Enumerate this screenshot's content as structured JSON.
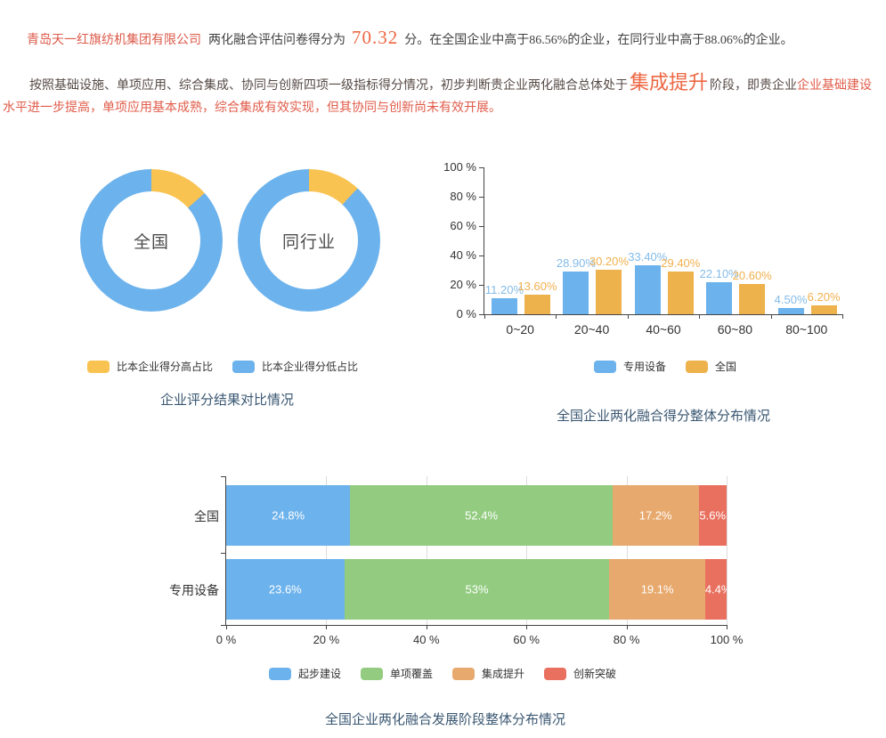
{
  "report": {
    "company": "青岛天一红旗纺机集团有限公司",
    "intro": "两化融合评估问卷得分为",
    "score": "70.32",
    "after_score": "分。在全国企业中高于86.56%的企业，在同行业中高于88.06%的企业。",
    "para2_lead": "按照基础设施、单项应用、综合集成、协同与创新四项一级指标得分情况，初步判断贵企业两化融合总体处于",
    "stage": "集成提升",
    "para2_mid": "阶段，即贵企业",
    "para2_tail": "企业基础建设水平进一步提高，单项应用基本成熟，综合集成有效实现，但其协同与创新尚未有效开展。"
  },
  "palette": {
    "accent_red": "#ed6742",
    "text_red": "#e05c4a",
    "title_navy": "#3a5772"
  },
  "chart_data": [
    {
      "type": "pie",
      "variant": "donut-pair",
      "title": "企业评分结果对比情况",
      "donuts": [
        {
          "label": "全国",
          "slices": [
            {
              "name": "比本企业得分高占比",
              "value": 13.44
            },
            {
              "name": "比本企业得分低占比",
              "value": 86.56
            }
          ]
        },
        {
          "label": "同行业",
          "slices": [
            {
              "name": "比本企业得分高占比",
              "value": 11.94
            },
            {
              "name": "比本企业得分低占比",
              "value": 88.06
            }
          ]
        }
      ],
      "legend": [
        {
          "label": "比本企业得分高占比",
          "color": "#f9c351"
        },
        {
          "label": "比本企业得分低占比",
          "color": "#6cb2ec"
        }
      ],
      "legend_position": "bottom"
    },
    {
      "type": "bar",
      "title": "全国企业两化融合得分整体分布情况",
      "categories": [
        "0~20",
        "20~40",
        "40~60",
        "60~80",
        "80~100"
      ],
      "series": [
        {
          "name": "专用设备",
          "color": "#6cb2ec",
          "label_color": "#84bbe8",
          "values": [
            11.2,
            28.9,
            33.4,
            22.1,
            4.5
          ],
          "labels": [
            "11.20%",
            "28.90%",
            "33.40%",
            "22.10%",
            "4.50%"
          ]
        },
        {
          "name": "全国",
          "color": "#edb24c",
          "label_color": "#f2b04e",
          "values": [
            13.6,
            30.2,
            29.4,
            20.6,
            6.2
          ],
          "labels": [
            "13.60%",
            "30.20%",
            "29.40%",
            "20.60%",
            "6.20%"
          ]
        }
      ],
      "ylabels": [
        "100 %",
        "80 %",
        "60 %",
        "40 %",
        "20 %",
        "0 %"
      ],
      "ylim": [
        0,
        100
      ],
      "grid": false,
      "legend_position": "bottom"
    },
    {
      "type": "bar",
      "variant": "stacked-horizontal",
      "title": "全国企业两化融合发展阶段整体分布情况",
      "categories": [
        "全国",
        "专用设备"
      ],
      "series": [
        {
          "name": "起步建设",
          "color": "#6cb2ec",
          "values": [
            24.8,
            23.6
          ],
          "labels": [
            "24.8%",
            "23.6%"
          ]
        },
        {
          "name": "单项覆盖",
          "color": "#93cc80",
          "values": [
            52.4,
            53
          ],
          "labels": [
            "52.4%",
            "53%"
          ]
        },
        {
          "name": "集成提升",
          "color": "#e7a96d",
          "values": [
            17.2,
            19.1
          ],
          "labels": [
            "17.2%",
            "19.1%"
          ]
        },
        {
          "name": "创新突破",
          "color": "#e9705f",
          "values": [
            5.6,
            4.4
          ],
          "labels": [
            "5.6%",
            "4.4%"
          ]
        }
      ],
      "xlabels": [
        "0 %",
        "20 %",
        "40 %",
        "60 %",
        "80 %",
        "100 %"
      ],
      "xlim": [
        0,
        100
      ],
      "grid": true,
      "legend_position": "bottom"
    }
  ]
}
